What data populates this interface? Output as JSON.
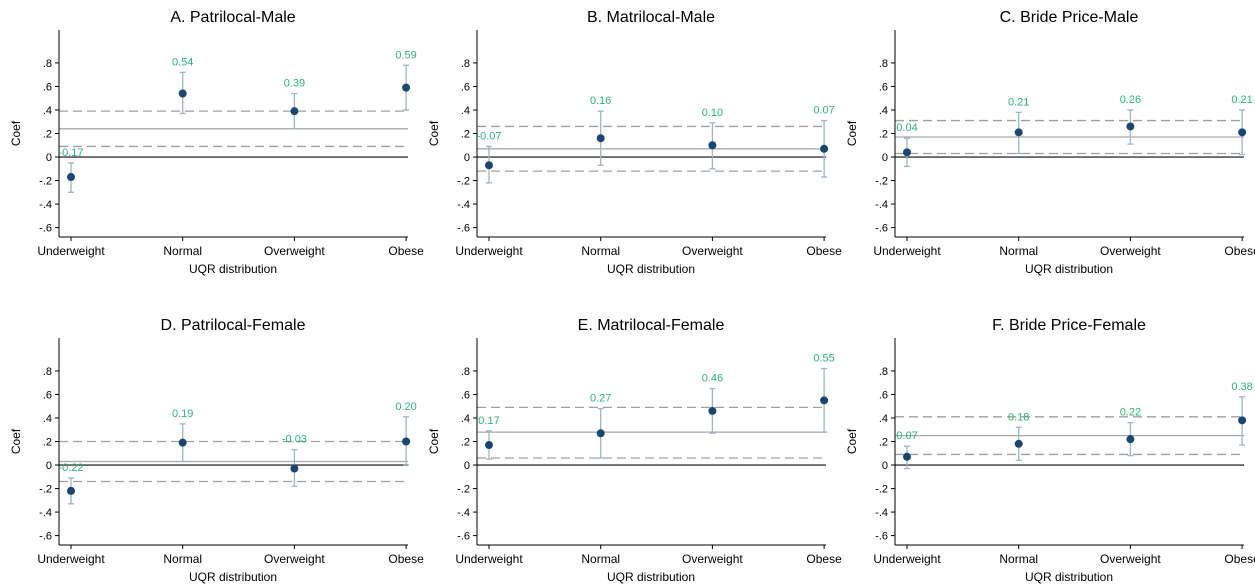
{
  "chart_data": [
    {
      "type": "scatter",
      "title": "A. Patrilocal-Male",
      "xlabel": "UQR distribution",
      "ylabel": "Coef",
      "categories": [
        "Underweight",
        "Normal",
        "Overweight",
        "Obese"
      ],
      "values": [
        -0.17,
        0.54,
        0.39,
        0.59
      ],
      "value_labels": [
        "-0.17",
        "0.54",
        "0.39",
        "0.59"
      ],
      "ci_low": [
        -0.3,
        0.37,
        0.24,
        0.4
      ],
      "ci_high": [
        -0.05,
        0.72,
        0.54,
        0.78
      ],
      "ref_line": 0.24,
      "ref_band": [
        0.09,
        0.39
      ],
      "yticks": [
        ".8",
        ".6",
        ".4",
        ".2",
        "0",
        "-.2",
        "-.4",
        "-.6"
      ],
      "ylim": [
        -0.68,
        1.08
      ]
    },
    {
      "type": "scatter",
      "title": "B. Matrilocal-Male",
      "xlabel": "UQR distribution",
      "ylabel": "Coef",
      "categories": [
        "Underweight",
        "Normal",
        "Overweight",
        "Obese"
      ],
      "values": [
        -0.07,
        0.16,
        0.1,
        0.07
      ],
      "value_labels": [
        "-0.07",
        "0.16",
        "0.10",
        "0.07"
      ],
      "ci_low": [
        -0.22,
        -0.07,
        -0.1,
        -0.17
      ],
      "ci_high": [
        0.09,
        0.39,
        0.29,
        0.31
      ],
      "ref_line": 0.07,
      "ref_band": [
        -0.12,
        0.26
      ],
      "yticks": [
        ".8",
        ".6",
        ".4",
        ".2",
        "0",
        "-.2",
        "-.4",
        "-.6"
      ],
      "ylim": [
        -0.68,
        1.08
      ]
    },
    {
      "type": "scatter",
      "title": "C. Bride Price-Male",
      "xlabel": "UQR distribution",
      "ylabel": "Coef",
      "categories": [
        "Underweight",
        "Normal",
        "Overweight",
        "Obese"
      ],
      "values": [
        0.04,
        0.21,
        0.26,
        0.21
      ],
      "value_labels": [
        "0.04",
        "0.21",
        "0.26",
        "0.21"
      ],
      "ci_low": [
        -0.08,
        0.03,
        0.11,
        0.02
      ],
      "ci_high": [
        0.16,
        0.38,
        0.4,
        0.4
      ],
      "ref_line": 0.17,
      "ref_band": [
        0.03,
        0.31
      ],
      "yticks": [
        ".8",
        ".6",
        ".4",
        ".2",
        "0",
        "-.2",
        "-.4",
        "-.6"
      ],
      "ylim": [
        -0.68,
        1.08
      ]
    },
    {
      "type": "scatter",
      "title": "D. Patrilocal-Female",
      "xlabel": "UQR distribution",
      "ylabel": "Coef",
      "categories": [
        "Underweight",
        "Normal",
        "Overweight",
        "Obese"
      ],
      "values": [
        -0.22,
        0.19,
        -0.03,
        0.2
      ],
      "value_labels": [
        "-0.22",
        "0.19",
        "-0.03",
        "0.20"
      ],
      "ci_low": [
        -0.33,
        0.03,
        -0.18,
        0.0
      ],
      "ci_high": [
        -0.11,
        0.35,
        0.13,
        0.41
      ],
      "ref_line": 0.03,
      "ref_band": [
        -0.14,
        0.2
      ],
      "yticks": [
        ".8",
        ".6",
        ".4",
        ".2",
        "0",
        "-.2",
        "-.4",
        "-.6"
      ],
      "ylim": [
        -0.68,
        1.08
      ]
    },
    {
      "type": "scatter",
      "title": "E. Matrilocal-Female",
      "xlabel": "UQR distribution",
      "ylabel": "Coef",
      "categories": [
        "Underweight",
        "Normal",
        "Overweight",
        "Obese"
      ],
      "values": [
        0.17,
        0.27,
        0.46,
        0.55
      ],
      "value_labels": [
        "0.17",
        "0.27",
        "0.46",
        "0.55"
      ],
      "ci_low": [
        0.05,
        0.06,
        0.27,
        0.28
      ],
      "ci_high": [
        0.29,
        0.48,
        0.65,
        0.82
      ],
      "ref_line": 0.28,
      "ref_band": [
        0.06,
        0.49
      ],
      "yticks": [
        ".8",
        ".6",
        ".4",
        ".2",
        "0",
        "-.2",
        "-.4",
        "-.6"
      ],
      "ylim": [
        -0.68,
        1.08
      ]
    },
    {
      "type": "scatter",
      "title": "F. Bride Price-Female",
      "xlabel": "UQR distribution",
      "ylabel": "Coef",
      "categories": [
        "Underweight",
        "Normal",
        "Overweight",
        "Obese"
      ],
      "values": [
        0.07,
        0.18,
        0.22,
        0.38
      ],
      "value_labels": [
        "0.07",
        "0.18",
        "0.22",
        "0.38"
      ],
      "ci_low": [
        -0.03,
        0.04,
        0.08,
        0.17
      ],
      "ci_high": [
        0.16,
        0.32,
        0.36,
        0.58
      ],
      "ref_line": 0.25,
      "ref_band": [
        0.09,
        0.41
      ],
      "yticks": [
        ".8",
        ".6",
        ".4",
        ".2",
        "0",
        "-.2",
        "-.4",
        "-.6"
      ],
      "ylim": [
        -0.68,
        1.08
      ]
    }
  ],
  "colors": {
    "point": "#1a476f",
    "ci": "#9fb4c8",
    "value_label": "#2db37a",
    "zero_line": "#555555",
    "ref_line": "#a9a9a9",
    "ref_band": "#a0a0a0",
    "axis": "#000000",
    "text": "#000000"
  }
}
